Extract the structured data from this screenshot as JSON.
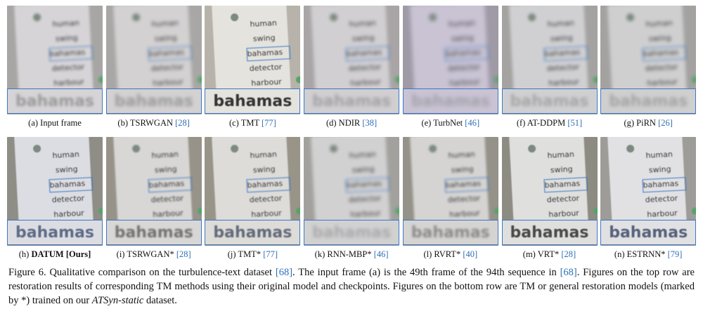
{
  "top_row": [
    {
      "label": "(a) Input frame",
      "ref": "",
      "zoom_text": "bahamas",
      "blur": "1.8px",
      "bg": "#a8a6a4",
      "card": "#d6d4d6",
      "zoomcolor": "#9a9a9a"
    },
    {
      "label": "(b) TSRWGAN ",
      "ref": "[28]",
      "zoom_text": "bahamas",
      "blur": "2.5px",
      "bg": "#a9a7a5",
      "card": "#d3d1d1",
      "zoomcolor": "#9c9c9c"
    },
    {
      "label": "(c) TMT ",
      "ref": "[77]",
      "zoom_text": "bahamas",
      "blur": "0.6px",
      "bg": "#b7b3aa",
      "card": "#e5e3de",
      "zoomcolor": "#333333"
    },
    {
      "label": "(d) NDIR ",
      "ref": "[38]",
      "zoom_text": "bahamas",
      "blur": "2.4px",
      "bg": "#a9a5a6",
      "card": "#d1cfd2",
      "zoomcolor": "#a2a2a6"
    },
    {
      "label": "(e) TurbNet ",
      "ref": "[46]",
      "zoom_text": "bahamas",
      "blur": "2.8px",
      "bg": "#9f9aa6",
      "card": "#c9c3d4",
      "zoomcolor": "#a5a2aa"
    },
    {
      "label": "(f) AT-DDPM ",
      "ref": "[51]",
      "zoom_text": "bahamas",
      "blur": "2.2px",
      "bg": "#a4a3a1",
      "card": "#d0d0d2",
      "zoomcolor": "#a6a6a6"
    },
    {
      "label": "(g) PiRN ",
      "ref": "[26]",
      "zoom_text": "bahamas",
      "blur": "2.3px",
      "bg": "#a3a2a1",
      "card": "#cfcfd0",
      "zoomcolor": "#a4a4a4"
    }
  ],
  "bottom_row": [
    {
      "label": "(h) ",
      "bold": "DATUM [Ours]",
      "ref": "",
      "zoom_text": "bahamas",
      "blur": "0.4px",
      "bg": "#8e8d86",
      "card": "#dcdde2",
      "zoomcolor": "#5e6c88"
    },
    {
      "label": "(i) TSRWGAN* ",
      "ref": "[28]",
      "zoom_text": "bahamas",
      "blur": "1.0px",
      "bg": "#979389",
      "card": "#d8d7d5",
      "zoomcolor": "#727272"
    },
    {
      "label": "(j) TMT* ",
      "ref": "[77]",
      "zoom_text": "bahamas",
      "blur": "0.7px",
      "bg": "#989488",
      "card": "#dddcd9",
      "zoomcolor": "#636b7a"
    },
    {
      "label": "(k) RNN-MBP* ",
      "ref": "[46]",
      "zoom_text": "bahamas",
      "blur": "2.4px",
      "bg": "#a2a19d",
      "card": "#d2d1d2",
      "zoomcolor": "#a9a9ab"
    },
    {
      "label": "(l) RVRT* ",
      "ref": "[40]",
      "zoom_text": "bahamas",
      "blur": "1.5px",
      "bg": "#959289",
      "card": "#d5d4d2",
      "zoomcolor": "#8a8a8c"
    },
    {
      "label": "(m) VRT* ",
      "ref": "[28]",
      "zoom_text": "bahamas",
      "blur": "0.6px",
      "bg": "#8e8c82",
      "card": "#dfdfde",
      "zoomcolor": "#4a4a4a"
    },
    {
      "label": "(n) ESTRNN* ",
      "ref": "[79]",
      "zoom_text": "bahamas",
      "blur": "0.6px",
      "bg": "#9e9c98",
      "card": "#e1e1e4",
      "zoomcolor": "#56627a"
    }
  ],
  "words": [
    "human",
    "swing",
    "bahamas",
    "detector",
    "harbour"
  ],
  "caption": {
    "p1": "Figure 6.  Qualitative comparison on the turbulence-text dataset ",
    "r1": "[68]",
    "p2": ". The input frame (a) is the 49th frame of the 94th sequence in ",
    "r2": "[68]",
    "p3": ". Figures on the top row are restoration results of corresponding TM methods using their original model and checkpoints.  Figures on the bottom row are TM or general restoration models (marked by *) trained on our ",
    "italic": "ATSyn-static",
    "p4": " dataset."
  }
}
